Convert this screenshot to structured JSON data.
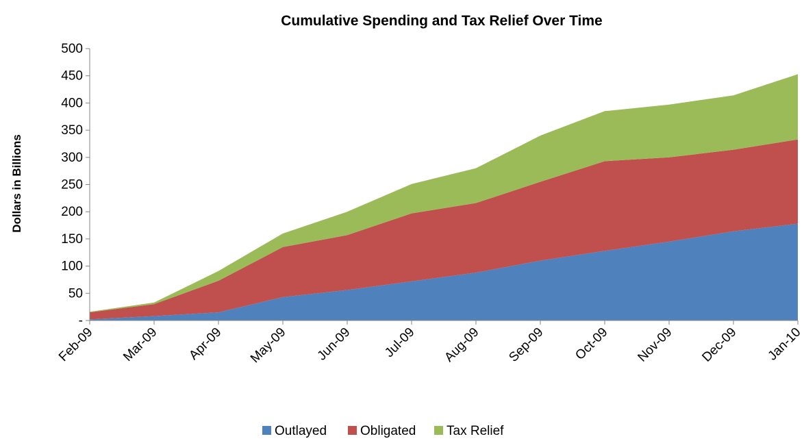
{
  "chart_data": {
    "type": "area",
    "stacked": true,
    "title": "Cumulative Spending and Tax Relief Over Time",
    "xlabel": "",
    "ylabel": "Dollars in Billions",
    "ylim": [
      0,
      500
    ],
    "yticks": [
      0,
      50,
      100,
      150,
      200,
      250,
      300,
      350,
      400,
      450,
      500
    ],
    "ytick_labels": [
      "-",
      "50",
      "100",
      "150",
      "200",
      "250",
      "300",
      "350",
      "400",
      "450",
      "500"
    ],
    "categories": [
      "Feb-09",
      "Mar-09",
      "Apr-09",
      "May-09",
      "Jun-09",
      "Jul-09",
      "Aug-09",
      "Sep-09",
      "Oct-09",
      "Nov-09",
      "Dec-09",
      "Jan-10"
    ],
    "series": [
      {
        "name": "Outlayed",
        "color": "#4F81BD",
        "values": [
          2,
          8,
          15,
          43,
          56,
          72,
          88,
          110,
          128,
          145,
          164,
          178
        ]
      },
      {
        "name": "Obligated",
        "color": "#C0504D",
        "values": [
          13,
          22,
          58,
          92,
          101,
          125,
          128,
          145,
          165,
          155,
          150,
          155
        ]
      },
      {
        "name": "Tax Relief",
        "color": "#9BBB59",
        "values": [
          1,
          3,
          18,
          25,
          43,
          54,
          64,
          85,
          92,
          97,
          100,
          120
        ]
      }
    ],
    "grid": false,
    "legend": "bottom"
  }
}
